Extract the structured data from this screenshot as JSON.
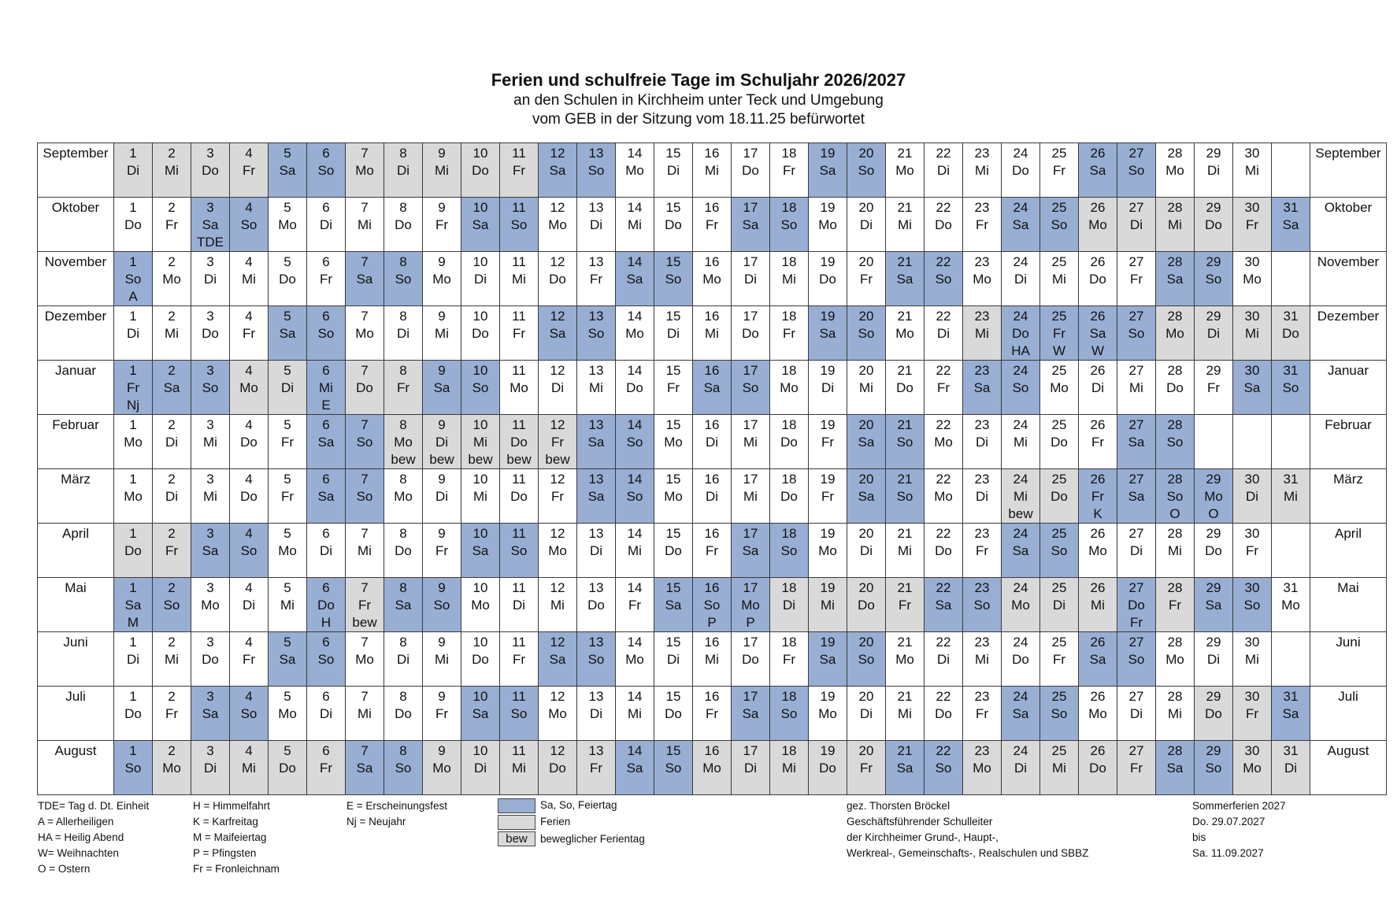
{
  "header": {
    "title": "Ferien und schulfreie Tage im Schuljahr 2026/2027",
    "subtitle1": "an den Schulen in Kirchheim unter Teck und Umgebung",
    "subtitle2": "vom GEB in der Sitzung vom 18.11.25 befürwortet"
  },
  "colors": {
    "weekend": "#98aed3",
    "ferien": "#d9d9d9",
    "border": "#3a3a3a"
  },
  "months": [
    {
      "name": "September",
      "start": "Di",
      "days": 30,
      "blue": [
        5,
        6,
        12,
        13,
        19,
        20,
        26,
        27
      ],
      "grey": [
        1,
        2,
        3,
        4,
        7,
        8,
        9,
        10,
        11
      ],
      "notes": {}
    },
    {
      "name": "Oktober",
      "start": "Do",
      "days": 31,
      "blue": [
        3,
        4,
        10,
        11,
        17,
        18,
        24,
        25,
        31
      ],
      "grey": [
        26,
        27,
        28,
        29,
        30
      ],
      "notes": {
        "3": "TDE"
      }
    },
    {
      "name": "November",
      "start": "So",
      "days": 30,
      "blue": [
        1,
        7,
        8,
        14,
        15,
        21,
        22,
        28,
        29
      ],
      "grey": [],
      "notes": {
        "1": "A"
      }
    },
    {
      "name": "Dezember",
      "start": "Di",
      "days": 31,
      "blue": [
        5,
        6,
        12,
        13,
        19,
        20,
        24,
        25,
        26,
        27
      ],
      "grey": [
        23,
        28,
        29,
        30,
        31
      ],
      "notes": {
        "24": "HA",
        "25": "W",
        "26": "W"
      }
    },
    {
      "name": "Januar",
      "start": "Fr",
      "days": 31,
      "blue": [
        1,
        2,
        3,
        6,
        9,
        10,
        16,
        17,
        23,
        24,
        30,
        31
      ],
      "grey": [
        4,
        5,
        7,
        8
      ],
      "notes": {
        "1": "Nj",
        "6": "E"
      }
    },
    {
      "name": "Februar",
      "start": "Mo",
      "days": 28,
      "blue": [
        6,
        7,
        13,
        14,
        20,
        21,
        27,
        28
      ],
      "grey": [
        8,
        9,
        10,
        11,
        12
      ],
      "notes": {
        "8": "bew",
        "9": "bew",
        "10": "bew",
        "11": "bew",
        "12": "bew"
      }
    },
    {
      "name": "März",
      "start": "Mo",
      "days": 31,
      "blue": [
        6,
        7,
        13,
        14,
        20,
        21,
        26,
        27,
        28,
        29
      ],
      "grey": [
        24,
        25,
        30,
        31
      ],
      "notes": {
        "24": "bew",
        "26": "K",
        "28": "O",
        "29": "O"
      }
    },
    {
      "name": "April",
      "start": "Do",
      "days": 30,
      "blue": [
        3,
        4,
        10,
        11,
        17,
        18,
        24,
        25
      ],
      "grey": [
        1,
        2
      ],
      "notes": {}
    },
    {
      "name": "Mai",
      "start": "Sa",
      "days": 31,
      "blue": [
        1,
        2,
        6,
        8,
        9,
        15,
        16,
        17,
        22,
        23,
        27,
        29,
        30
      ],
      "grey": [
        7,
        18,
        19,
        20,
        21,
        24,
        25,
        26,
        28
      ],
      "notes": {
        "1": "M",
        "6": "H",
        "7": "bew",
        "16": "P",
        "17": "P",
        "27": "Fr"
      }
    },
    {
      "name": "Juni",
      "start": "Di",
      "days": 30,
      "blue": [
        5,
        6,
        12,
        13,
        19,
        20,
        26,
        27
      ],
      "grey": [],
      "notes": {}
    },
    {
      "name": "Juli",
      "start": "Do",
      "days": 31,
      "blue": [
        3,
        4,
        10,
        11,
        17,
        18,
        24,
        25,
        31
      ],
      "grey": [
        29,
        30
      ],
      "notes": {}
    },
    {
      "name": "August",
      "start": "So",
      "days": 31,
      "blue": [
        1,
        7,
        8,
        14,
        15,
        21,
        22,
        28,
        29
      ],
      "grey": [
        2,
        3,
        4,
        5,
        6,
        9,
        10,
        11,
        12,
        13,
        16,
        17,
        18,
        19,
        20,
        23,
        24,
        25,
        26,
        27,
        30,
        31
      ],
      "notes": {}
    }
  ],
  "weekdays": [
    "Mo",
    "Di",
    "Mi",
    "Do",
    "Fr",
    "Sa",
    "So"
  ],
  "legend": {
    "col1": [
      "TDE= Tag d. Dt. Einheit",
      "A = Allerheiligen",
      "HA = Heilig Abend",
      "W= Weihnachten",
      "O = Ostern"
    ],
    "col2": [
      "H = Himmelfahrt",
      "K  = Karfreitag",
      "M = Maifeiertag",
      "P  = Pfingsten",
      "Fr = Fronleichnam"
    ],
    "col3": [
      "E = Erscheinungsfest",
      "Nj = Neujahr"
    ],
    "swatches": {
      "weekend": "Sa, So, Feiertag",
      "ferien": "Ferien",
      "bew_abbr": "bew",
      "bew": "beweglicher Ferientag"
    },
    "signature": [
      "gez. Thorsten Bröckel",
      "Geschäftsführender Schulleiter",
      "der Kirchheimer Grund-, Haupt-,",
      "Werkreal-, Gemeinschafts-, Realschulen und SBBZ"
    ],
    "summer": [
      "Sommerferien 2027",
      "Do. 29.07.2027",
      "bis",
      "Sa. 11.09.2027"
    ]
  }
}
